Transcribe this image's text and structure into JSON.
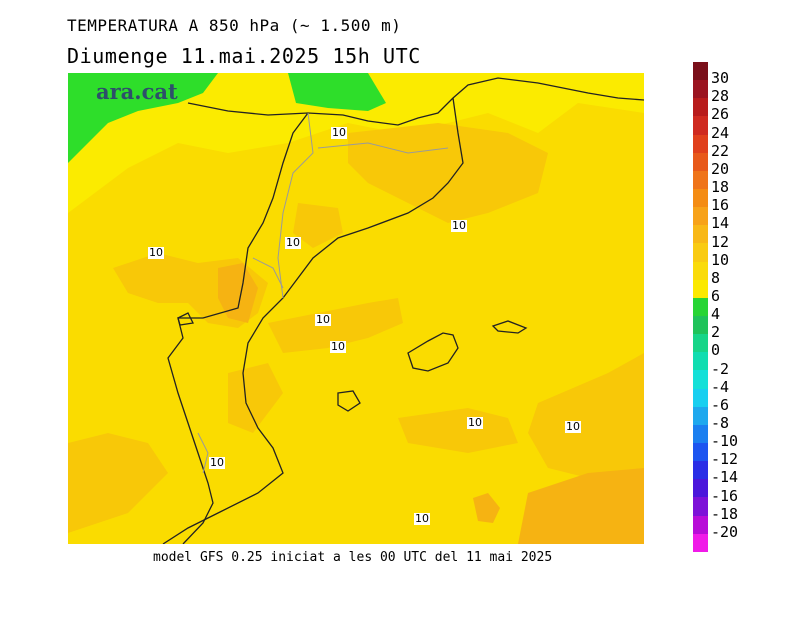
{
  "title": "TEMPERATURA A 850 hPa (~ 1.500 m)",
  "subtitle": "Diumenge  11.mai.2025 15h UTC",
  "footer": "model GFS 0.25 iniciat a les 00 UTC del 11 mai 2025",
  "logo_text": "ara.cat",
  "contour_labels": [
    "10",
    "10",
    "10",
    "10",
    "10",
    "10",
    "10",
    "10",
    "10",
    "10"
  ],
  "colorbar": {
    "labels": [
      "30",
      "28",
      "26",
      "24",
      "22",
      "20",
      "18",
      "16",
      "14",
      "12",
      "10",
      "8",
      "6",
      "4",
      "2",
      "0",
      "-2",
      "-4",
      "-6",
      "-8",
      "-10",
      "-12",
      "-14",
      "-16",
      "-18",
      "-20"
    ],
    "colors": [
      "#7a0f1a",
      "#9b1420",
      "#b81c1c",
      "#cf2a20",
      "#e0401c",
      "#e8591a",
      "#ef741a",
      "#f48c14",
      "#f7a219",
      "#f8b817",
      "#f9cb12",
      "#fadb0a",
      "#fbe900",
      "#27d534",
      "#1fc35a",
      "#17d588",
      "#10ddb0",
      "#14e0d8",
      "#18cff0",
      "#1ea8ee",
      "#1b7ff0",
      "#1d55f0",
      "#2a2ee6",
      "#4b17db",
      "#7d12d8",
      "#b80dd8",
      "#f01be8"
    ]
  },
  "palette": {
    "green": "#2ede2a",
    "yellow": "#fbeb00",
    "gold": "#fadc00",
    "orange_light": "#f8c808",
    "orange": "#f6b312"
  }
}
